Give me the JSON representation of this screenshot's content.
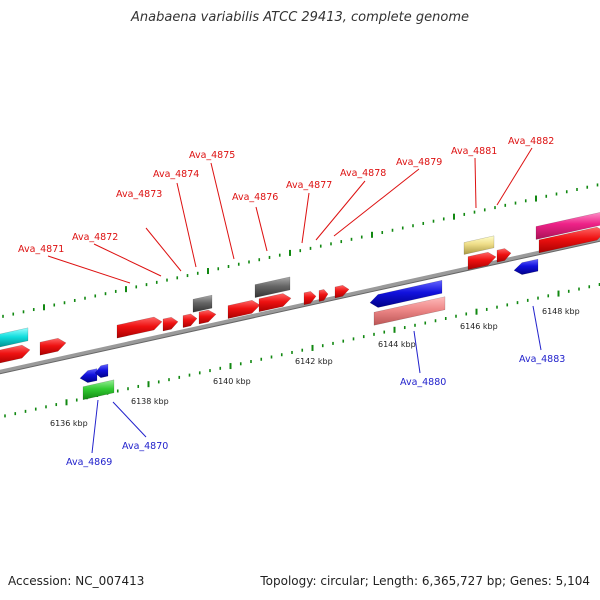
{
  "title": "Anabaena variabilis ATCC 29413, complete genome",
  "footer": {
    "accession": "Accession: NC_007413",
    "topology": "Topology: circular; Length: 6,365,727 bp; Genes: 5,104"
  },
  "scale_labels": [
    "6136 kbp",
    "6138 kbp",
    "6140 kbp",
    "6142 kbp",
    "6144 kbp",
    "6146 kbp",
    "6148 kbp"
  ],
  "gene_labels_forward": [
    "Ava_4871",
    "Ava_4872",
    "Ava_4873",
    "Ava_4874",
    "Ava_4875",
    "Ava_4876",
    "Ava_4877",
    "Ava_4878",
    "Ava_4879",
    "Ava_4881",
    "Ava_4882"
  ],
  "gene_labels_reverse": [
    "Ava_4869",
    "Ava_4870",
    "Ava_4880",
    "Ava_4883"
  ],
  "colors": {
    "red": "#ee1111",
    "blue": "#1111dd",
    "gray": "#666666",
    "green": "#33cc33",
    "cyan": "#11dddd",
    "pink": "#ee5588",
    "salmon": "#ee8888",
    "khaki": "#eedd88",
    "label_forward": "#dd1111",
    "label_reverse": "#2222cc"
  }
}
